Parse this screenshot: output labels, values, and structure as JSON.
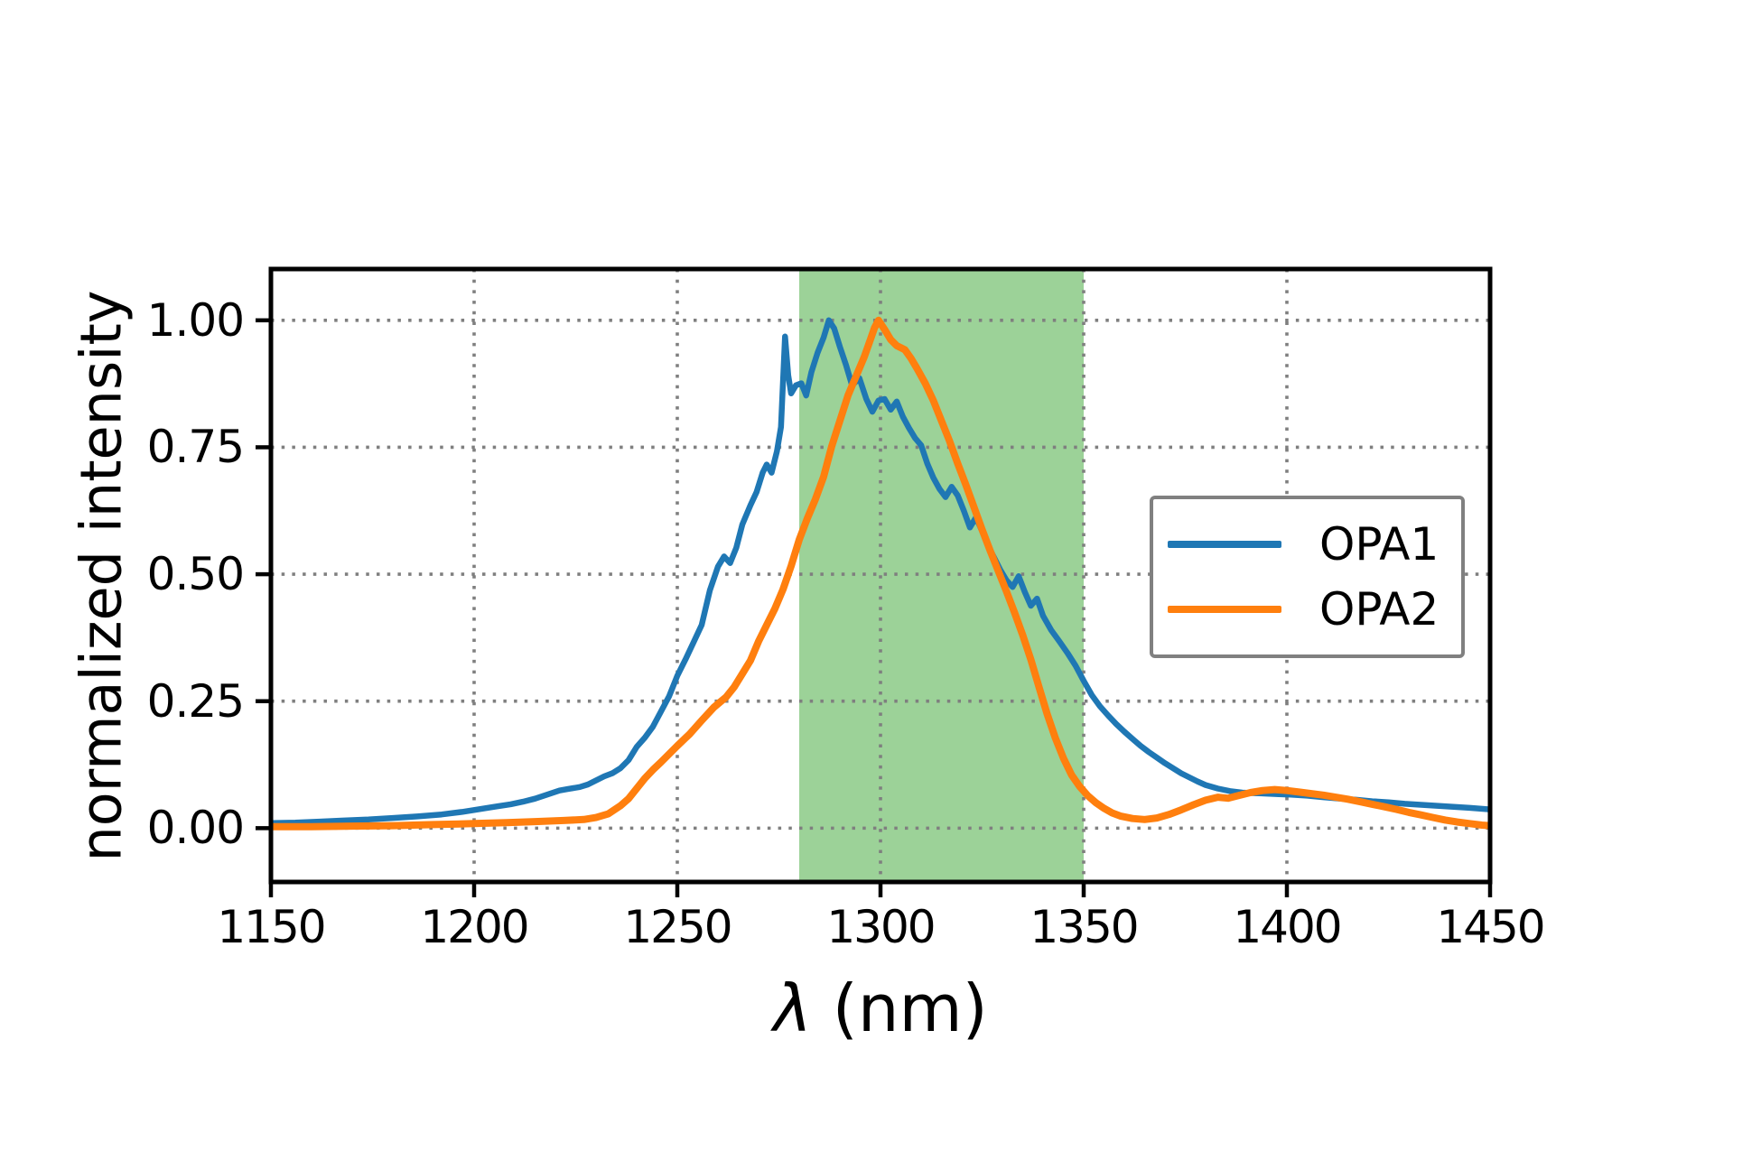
{
  "figure": {
    "background": "#ffffff"
  },
  "chart_data": {
    "type": "line",
    "title": "",
    "xlabel_symbol": "λ",
    "xlabel_unit": "(nm)",
    "ylabel": "normalized intensity",
    "xlim": [
      1150,
      1450
    ],
    "ylim": [
      -0.106,
      1.101
    ],
    "grid": {
      "visible": true,
      "style": "dotted",
      "color": "#7f7f7f"
    },
    "axis_color": "#000000",
    "xticks": {
      "values": [
        1150,
        1200,
        1250,
        1300,
        1350,
        1400,
        1450
      ],
      "labels": [
        "1150",
        "1200",
        "1250",
        "1300",
        "1350",
        "1400",
        "1450"
      ]
    },
    "yticks": {
      "values": [
        0.0,
        0.25,
        0.5,
        0.75,
        1.0
      ],
      "labels": [
        "0.00",
        "0.25",
        "0.50",
        "0.75",
        "1.00"
      ]
    },
    "shaded_region": {
      "x_start": 1280,
      "x_end": 1350,
      "color": "#9cd298"
    },
    "legend": {
      "position": "center right",
      "border_color": "#808080"
    },
    "series": [
      {
        "name": "OPA1",
        "color": "#1f77b4",
        "line_width": 6.5,
        "points": [
          [
            1150,
            0.01
          ],
          [
            1156,
            0.011
          ],
          [
            1162,
            0.013
          ],
          [
            1168,
            0.015
          ],
          [
            1174,
            0.017
          ],
          [
            1180,
            0.02
          ],
          [
            1186,
            0.023
          ],
          [
            1192,
            0.027
          ],
          [
            1197,
            0.032
          ],
          [
            1201,
            0.037
          ],
          [
            1205,
            0.042
          ],
          [
            1209,
            0.047
          ],
          [
            1212,
            0.052
          ],
          [
            1215,
            0.058
          ],
          [
            1218,
            0.066
          ],
          [
            1221,
            0.074
          ],
          [
            1223,
            0.077
          ],
          [
            1226,
            0.081
          ],
          [
            1228,
            0.086
          ],
          [
            1230,
            0.094
          ],
          [
            1232,
            0.102
          ],
          [
            1234,
            0.108
          ],
          [
            1236,
            0.118
          ],
          [
            1238,
            0.134
          ],
          [
            1240,
            0.16
          ],
          [
            1242,
            0.178
          ],
          [
            1244,
            0.2
          ],
          [
            1246,
            0.23
          ],
          [
            1248,
            0.26
          ],
          [
            1250,
            0.3
          ],
          [
            1252,
            0.332
          ],
          [
            1254,
            0.366
          ],
          [
            1256,
            0.4
          ],
          [
            1258,
            0.468
          ],
          [
            1260,
            0.515
          ],
          [
            1261.5,
            0.535
          ],
          [
            1263,
            0.522
          ],
          [
            1264.5,
            0.552
          ],
          [
            1266,
            0.598
          ],
          [
            1268,
            0.636
          ],
          [
            1269.5,
            0.662
          ],
          [
            1271,
            0.7
          ],
          [
            1272,
            0.716
          ],
          [
            1273.2,
            0.7
          ],
          [
            1274.5,
            0.742
          ],
          [
            1275.5,
            0.79
          ],
          [
            1276.5,
            0.968
          ],
          [
            1277.3,
            0.892
          ],
          [
            1278,
            0.856
          ],
          [
            1279.2,
            0.872
          ],
          [
            1280.5,
            0.876
          ],
          [
            1281.7,
            0.852
          ],
          [
            1283,
            0.898
          ],
          [
            1284.5,
            0.936
          ],
          [
            1286,
            0.966
          ],
          [
            1287.3,
            1.0
          ],
          [
            1288.6,
            0.984
          ],
          [
            1290,
            0.948
          ],
          [
            1291.5,
            0.912
          ],
          [
            1293,
            0.872
          ],
          [
            1294.8,
            0.886
          ],
          [
            1296.5,
            0.845
          ],
          [
            1298,
            0.82
          ],
          [
            1299.5,
            0.842
          ],
          [
            1301,
            0.845
          ],
          [
            1302.5,
            0.824
          ],
          [
            1304,
            0.84
          ],
          [
            1305.5,
            0.81
          ],
          [
            1307,
            0.788
          ],
          [
            1308.5,
            0.768
          ],
          [
            1310,
            0.754
          ],
          [
            1311.5,
            0.718
          ],
          [
            1313,
            0.69
          ],
          [
            1314.5,
            0.668
          ],
          [
            1316,
            0.652
          ],
          [
            1317.5,
            0.672
          ],
          [
            1319,
            0.655
          ],
          [
            1320.5,
            0.625
          ],
          [
            1322,
            0.592
          ],
          [
            1323.5,
            0.612
          ],
          [
            1325,
            0.585
          ],
          [
            1326.5,
            0.555
          ],
          [
            1328,
            0.532
          ],
          [
            1329.5,
            0.508
          ],
          [
            1331,
            0.488
          ],
          [
            1332.5,
            0.475
          ],
          [
            1334,
            0.496
          ],
          [
            1335.5,
            0.465
          ],
          [
            1337,
            0.438
          ],
          [
            1338.5,
            0.452
          ],
          [
            1340,
            0.418
          ],
          [
            1342,
            0.39
          ],
          [
            1344,
            0.368
          ],
          [
            1346,
            0.345
          ],
          [
            1348,
            0.32
          ],
          [
            1350,
            0.29
          ],
          [
            1352,
            0.262
          ],
          [
            1354,
            0.24
          ],
          [
            1356,
            0.222
          ],
          [
            1358,
            0.205
          ],
          [
            1360,
            0.19
          ],
          [
            1362,
            0.176
          ],
          [
            1364,
            0.162
          ],
          [
            1366,
            0.15
          ],
          [
            1368,
            0.139
          ],
          [
            1370,
            0.128
          ],
          [
            1372,
            0.118
          ],
          [
            1374,
            0.108
          ],
          [
            1376,
            0.1
          ],
          [
            1378,
            0.092
          ],
          [
            1380,
            0.085
          ],
          [
            1383,
            0.078
          ],
          [
            1386,
            0.073
          ],
          [
            1389,
            0.07
          ],
          [
            1392,
            0.069
          ],
          [
            1395,
            0.068
          ],
          [
            1398,
            0.067
          ],
          [
            1401,
            0.066
          ],
          [
            1405,
            0.064
          ],
          [
            1409,
            0.061
          ],
          [
            1413,
            0.058
          ],
          [
            1417,
            0.056
          ],
          [
            1421,
            0.053
          ],
          [
            1425,
            0.051
          ],
          [
            1429,
            0.048
          ],
          [
            1433,
            0.046
          ],
          [
            1437,
            0.044
          ],
          [
            1441,
            0.042
          ],
          [
            1445,
            0.04
          ],
          [
            1450,
            0.037
          ]
        ]
      },
      {
        "name": "OPA2",
        "color": "#ff7f0e",
        "line_width": 8,
        "points": [
          [
            1150,
            0.003
          ],
          [
            1160,
            0.003
          ],
          [
            1170,
            0.004
          ],
          [
            1180,
            0.005
          ],
          [
            1190,
            0.007
          ],
          [
            1200,
            0.009
          ],
          [
            1208,
            0.011
          ],
          [
            1215,
            0.013
          ],
          [
            1222,
            0.015
          ],
          [
            1227,
            0.017
          ],
          [
            1230,
            0.021
          ],
          [
            1233,
            0.028
          ],
          [
            1236,
            0.044
          ],
          [
            1238,
            0.058
          ],
          [
            1240,
            0.078
          ],
          [
            1242,
            0.098
          ],
          [
            1244,
            0.115
          ],
          [
            1246,
            0.13
          ],
          [
            1248,
            0.146
          ],
          [
            1250,
            0.162
          ],
          [
            1253,
            0.185
          ],
          [
            1256,
            0.212
          ],
          [
            1259,
            0.238
          ],
          [
            1262,
            0.258
          ],
          [
            1264,
            0.278
          ],
          [
            1266,
            0.304
          ],
          [
            1268,
            0.33
          ],
          [
            1270,
            0.368
          ],
          [
            1272,
            0.4
          ],
          [
            1274,
            0.432
          ],
          [
            1276,
            0.47
          ],
          [
            1278,
            0.516
          ],
          [
            1280,
            0.568
          ],
          [
            1282,
            0.61
          ],
          [
            1284,
            0.648
          ],
          [
            1286,
            0.692
          ],
          [
            1288,
            0.752
          ],
          [
            1290,
            0.802
          ],
          [
            1292,
            0.852
          ],
          [
            1294,
            0.89
          ],
          [
            1296,
            0.928
          ],
          [
            1297.5,
            0.962
          ],
          [
            1298.5,
            0.985
          ],
          [
            1299.5,
            1.0
          ],
          [
            1301,
            0.982
          ],
          [
            1302.5,
            0.962
          ],
          [
            1304,
            0.95
          ],
          [
            1306,
            0.942
          ],
          [
            1307.5,
            0.925
          ],
          [
            1309,
            0.905
          ],
          [
            1311,
            0.876
          ],
          [
            1313,
            0.842
          ],
          [
            1315,
            0.802
          ],
          [
            1317,
            0.762
          ],
          [
            1319,
            0.718
          ],
          [
            1321,
            0.676
          ],
          [
            1323,
            0.632
          ],
          [
            1325,
            0.588
          ],
          [
            1327,
            0.546
          ],
          [
            1329,
            0.506
          ],
          [
            1331,
            0.466
          ],
          [
            1333,
            0.424
          ],
          [
            1335,
            0.38
          ],
          [
            1337,
            0.332
          ],
          [
            1339,
            0.278
          ],
          [
            1341,
            0.225
          ],
          [
            1343,
            0.178
          ],
          [
            1345,
            0.138
          ],
          [
            1347,
            0.105
          ],
          [
            1349,
            0.082
          ],
          [
            1351,
            0.064
          ],
          [
            1353,
            0.05
          ],
          [
            1355,
            0.039
          ],
          [
            1357,
            0.03
          ],
          [
            1359,
            0.024
          ],
          [
            1362,
            0.019
          ],
          [
            1365,
            0.017
          ],
          [
            1368,
            0.02
          ],
          [
            1371,
            0.027
          ],
          [
            1374,
            0.036
          ],
          [
            1377,
            0.046
          ],
          [
            1380,
            0.055
          ],
          [
            1383,
            0.061
          ],
          [
            1385.5,
            0.059
          ],
          [
            1388,
            0.064
          ],
          [
            1391,
            0.07
          ],
          [
            1394,
            0.074
          ],
          [
            1397,
            0.076
          ],
          [
            1400,
            0.074
          ],
          [
            1403,
            0.071
          ],
          [
            1406,
            0.068
          ],
          [
            1409,
            0.065
          ],
          [
            1412,
            0.061
          ],
          [
            1415,
            0.057
          ],
          [
            1418,
            0.052
          ],
          [
            1421,
            0.047
          ],
          [
            1424,
            0.042
          ],
          [
            1427,
            0.037
          ],
          [
            1430,
            0.031
          ],
          [
            1433,
            0.026
          ],
          [
            1436,
            0.021
          ],
          [
            1439,
            0.016
          ],
          [
            1442,
            0.012
          ],
          [
            1445,
            0.009
          ],
          [
            1448,
            0.006
          ],
          [
            1450,
            0.005
          ]
        ]
      }
    ]
  }
}
